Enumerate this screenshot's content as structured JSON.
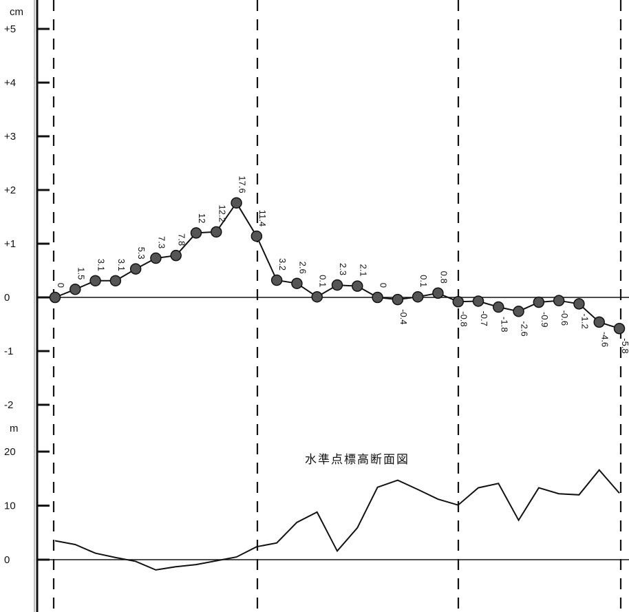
{
  "chart_data": [
    {
      "type": "line",
      "title": "",
      "ylabel": "cm",
      "ylim": [
        -2,
        5
      ],
      "y_ticks": [
        "+5",
        "+4",
        "+3",
        "+2",
        "+1",
        "0",
        "-1",
        "-2"
      ],
      "y_tick_values": [
        5,
        4,
        3,
        2,
        1,
        0,
        -1,
        -2
      ],
      "grid": false,
      "series": [
        {
          "values": [
            0,
            0.15,
            0.31,
            0.31,
            0.53,
            0.73,
            0.78,
            1.2,
            1.22,
            1.76,
            1.14,
            0.32,
            0.26,
            0.01,
            0.23,
            0.21,
            0,
            -0.04,
            0.01,
            0.08,
            -0.08,
            -0.07,
            -0.18,
            -0.26,
            -0.09,
            -0.06,
            -0.12,
            -0.46,
            -0.58
          ],
          "labels": [
            "0",
            "1.5",
            "3.1",
            "3.1",
            "5.3",
            "7.3",
            "7.8",
            "12",
            "12.2",
            "17.6",
            "11.4",
            "3.2",
            "2.6",
            "0.1",
            "2.3",
            "2.1",
            "0",
            "-0.4",
            "0.1",
            "0.8",
            "-0.8",
            "-0.7",
            "-1.8",
            "-2.6",
            "-0.9",
            "-0.6",
            "-1.2",
            "-4.6",
            "-5.8"
          ]
        }
      ]
    },
    {
      "type": "line",
      "title": "水準点標高断面図",
      "ylabel": "m",
      "ylim": [
        0,
        20
      ],
      "y_ticks": [
        "20",
        "10",
        "0"
      ],
      "y_tick_values": [
        20,
        10,
        0
      ],
      "grid": false,
      "series": [
        {
          "values": [
            3.5,
            2.8,
            1.2,
            0.4,
            -0.3,
            -1.9,
            -1.3,
            -0.9,
            -0.2,
            0.5,
            2.4,
            3.1,
            6.9,
            8.8,
            1.6,
            5.9,
            13.4,
            14.7,
            13.0,
            11.2,
            10.1,
            13.3,
            14.1,
            7.3,
            13.3,
            12.2,
            12.0,
            16.6,
            12.3
          ]
        }
      ]
    }
  ]
}
